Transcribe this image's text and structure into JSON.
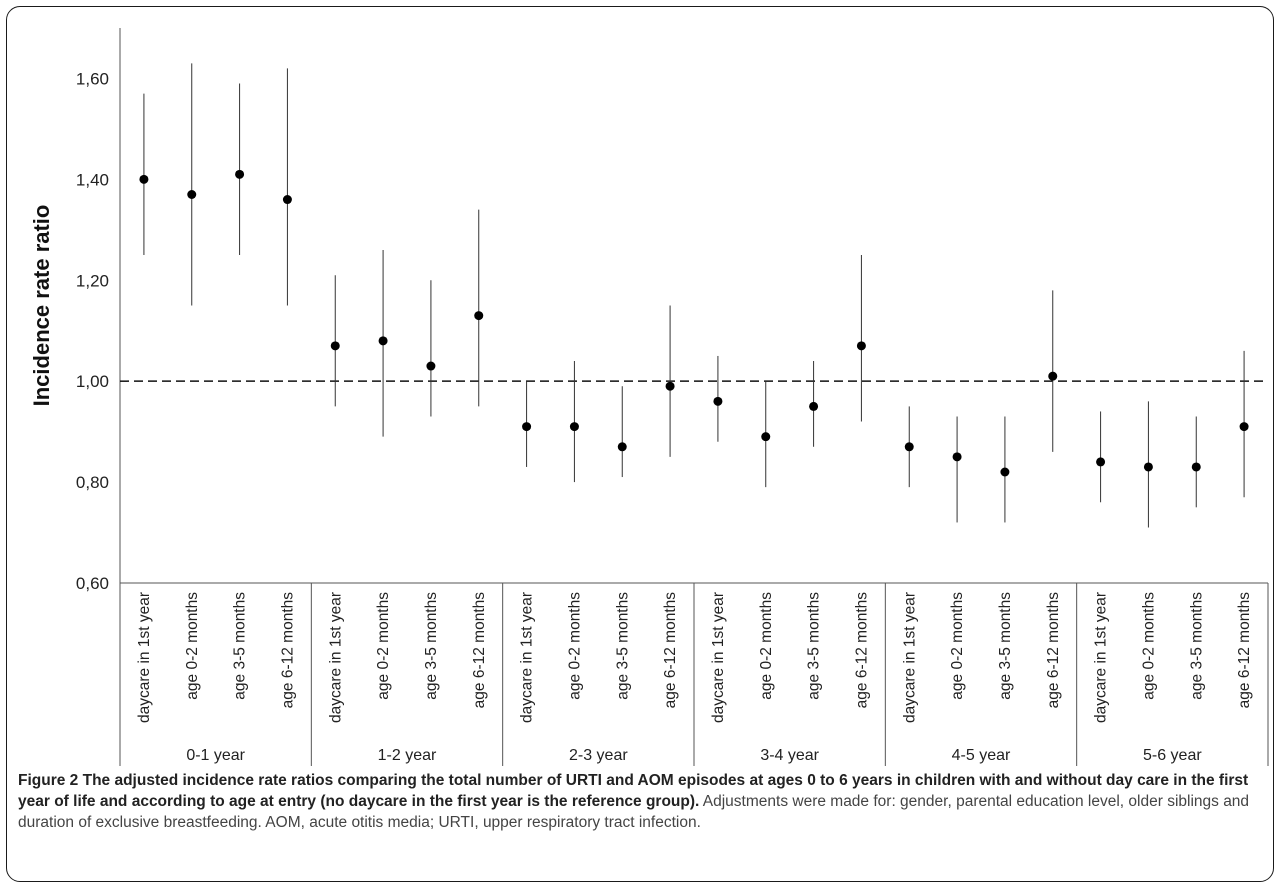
{
  "chart_data": {
    "type": "scatter",
    "ylabel": "Incidence rate ratio",
    "ylim": [
      0.6,
      1.7
    ],
    "yticks": [
      "0,60",
      "0,80",
      "1,00",
      "1,20",
      "1,40",
      "1,60"
    ],
    "reference_line": 1.0,
    "groups": [
      "0-1 year",
      "1-2 year",
      "2-3 year",
      "3-4 year",
      "4-5 year",
      "5-6 year"
    ],
    "subcategories": [
      "daycare in 1st year",
      "age 0-2 months",
      "age 3-5 months",
      "age 6-12 months"
    ],
    "points": [
      [
        1.4,
        1.25,
        1.57
      ],
      [
        1.37,
        1.15,
        1.63
      ],
      [
        1.41,
        1.25,
        1.59
      ],
      [
        1.36,
        1.15,
        1.62
      ],
      [
        1.07,
        0.95,
        1.21
      ],
      [
        1.08,
        0.89,
        1.26
      ],
      [
        1.03,
        0.93,
        1.2
      ],
      [
        1.13,
        0.95,
        1.34
      ],
      [
        0.91,
        0.83,
        1.0
      ],
      [
        0.91,
        0.8,
        1.04
      ],
      [
        0.87,
        0.81,
        0.99
      ],
      [
        0.99,
        0.85,
        1.15
      ],
      [
        0.96,
        0.88,
        1.05
      ],
      [
        0.89,
        0.79,
        1.0
      ],
      [
        0.95,
        0.87,
        1.04
      ],
      [
        1.07,
        0.92,
        1.25
      ],
      [
        0.87,
        0.79,
        0.95
      ],
      [
        0.85,
        0.72,
        0.93
      ],
      [
        0.82,
        0.72,
        0.93
      ],
      [
        1.01,
        0.86,
        1.18
      ],
      [
        0.84,
        0.76,
        0.94
      ],
      [
        0.83,
        0.71,
        0.96
      ],
      [
        0.83,
        0.75,
        0.93
      ],
      [
        0.91,
        0.77,
        1.06
      ]
    ]
  },
  "caption": {
    "title": "Figure 2 The adjusted incidence rate ratios comparing the total number of URTI and AOM episodes at ages 0 to 6 years in children with and without day care in the first year of life and according to age at entry (no daycare in the first year is the reference group).",
    "text": "Adjustments were made for: gender, parental education level, older siblings and duration of exclusive breastfeeding. AOM, acute otitis media; URTI, upper respiratory tract infection."
  }
}
